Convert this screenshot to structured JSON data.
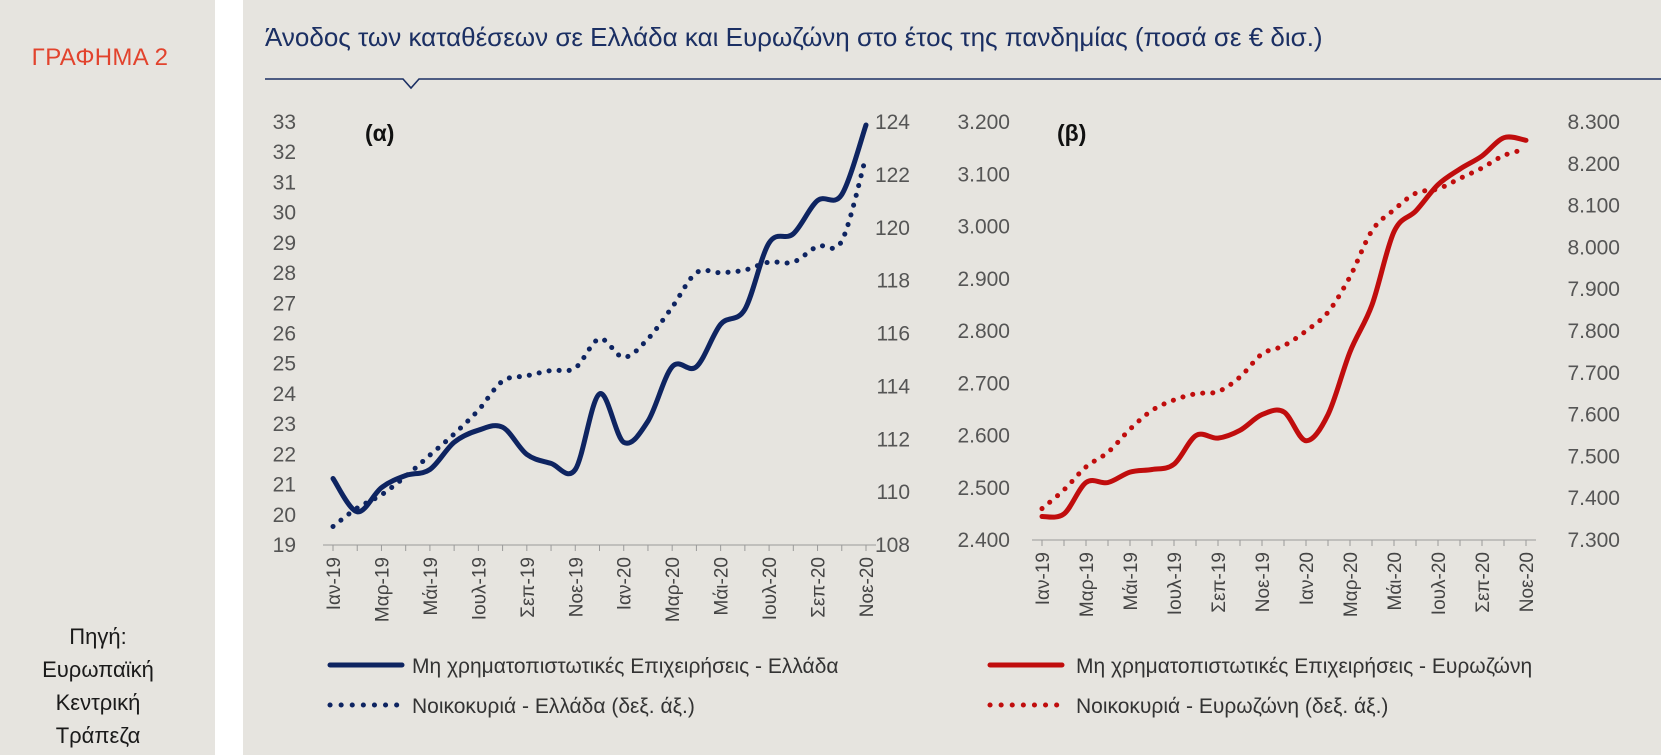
{
  "sidebar": {
    "label": "ΓΡΑΦΗΜΑ 2",
    "source": [
      "Πηγή:",
      "Ευρωπαϊκή",
      "Κεντρική",
      "Τράπεζα"
    ]
  },
  "title": "Άνοδος των καταθέσεων σε Ελλάδα και Ευρωζώνη στο έτος της πανδημίας (ποσά σε € δισ.)",
  "colors": {
    "navy": "#0e2461",
    "red": "#c00d0d",
    "title": "#1b2f63",
    "label": "#e2432d"
  },
  "chart_data": [
    {
      "type": "line",
      "panel_label": "(α)",
      "x": [
        "Ιαν-19",
        "Φεβ-19",
        "Μαρ-19",
        "Απρ-19",
        "Μάι-19",
        "Ιουν-19",
        "Ιουλ-19",
        "Αυγ-19",
        "Σεπ-19",
        "Οκτ-19",
        "Νοε-19",
        "Δεκ-19",
        "Ιαν-20",
        "Φεβ-20",
        "Μαρ-20",
        "Απρ-20",
        "Μάι-20",
        "Ιουν-20",
        "Ιουλ-20",
        "Αυγ-20",
        "Σεπ-20",
        "Οκτ-20",
        "Νοε-20"
      ],
      "xtick_labels": [
        "Ιαν-19",
        "Μαρ-19",
        "Μάι-19",
        "Ιουλ-19",
        "Σεπ-19",
        "Νοε-19",
        "Ιαν-20",
        "Μαρ-20",
        "Μάι-20",
        "Ιουλ-20",
        "Σεπ-20",
        "Νοε-20"
      ],
      "left_axis": {
        "ylim": [
          19,
          33
        ],
        "ticks": [
          "19",
          "20",
          "21",
          "22",
          "23",
          "24",
          "25",
          "26",
          "27",
          "28",
          "29",
          "30",
          "31",
          "32",
          "33"
        ]
      },
      "right_axis": {
        "ylim": [
          108,
          124
        ],
        "ticks": [
          "108",
          "110",
          "112",
          "114",
          "116",
          "118",
          "120",
          "122",
          "124"
        ]
      },
      "series": [
        {
          "name": "Μη χρηματοπιστωτικές Επιχειρήσεις - Ελλάδα",
          "axis": "left",
          "style": "solid",
          "values": [
            21.2,
            20.1,
            20.9,
            21.3,
            21.5,
            22.4,
            22.8,
            22.9,
            22.0,
            21.7,
            21.5,
            24.0,
            22.4,
            23.1,
            24.9,
            24.9,
            26.3,
            26.8,
            29.0,
            29.3,
            30.4,
            30.6,
            32.9
          ]
        },
        {
          "name": "Νοικοκυριά - Ελλάδα  (δεξ. άξ.)",
          "axis": "right",
          "style": "dotted",
          "values": [
            108.7,
            109.4,
            109.9,
            110.6,
            111.4,
            112.2,
            113.1,
            114.2,
            114.4,
            114.6,
            114.7,
            115.8,
            115.1,
            115.8,
            117.0,
            118.3,
            118.3,
            118.4,
            118.7,
            118.7,
            119.3,
            119.5,
            122.7
          ]
        }
      ]
    },
    {
      "type": "line",
      "panel_label": "(β)",
      "x": [
        "Ιαν-19",
        "Φεβ-19",
        "Μαρ-19",
        "Απρ-19",
        "Μάι-19",
        "Ιουν-19",
        "Ιουλ-19",
        "Αυγ-19",
        "Σεπ-19",
        "Οκτ-19",
        "Νοε-19",
        "Δεκ-19",
        "Ιαν-20",
        "Φεβ-20",
        "Μαρ-20",
        "Απρ-20",
        "Μάι-20",
        "Ιουν-20",
        "Ιουλ-20",
        "Αυγ-20",
        "Σεπ-20",
        "Οκτ-20",
        "Νοε-20"
      ],
      "xtick_labels": [
        "Ιαν-19",
        "Μαρ-19",
        "Μάι-19",
        "Ιουλ-19",
        "Σεπ-19",
        "Νοε-19",
        "Ιαν-20",
        "Μαρ-20",
        "Μάι-20",
        "Ιουλ-20",
        "Σεπ-20",
        "Νοε-20"
      ],
      "left_axis": {
        "ylim": [
          2400,
          3200
        ],
        "ticks": [
          "2.400",
          "2.500",
          "2.600",
          "2.700",
          "2.800",
          "2.900",
          "3.000",
          "3.100",
          "3.200"
        ]
      },
      "right_axis": {
        "ylim": [
          7300,
          8300
        ],
        "ticks": [
          "7.300",
          "7.400",
          "7.500",
          "7.600",
          "7.700",
          "7.800",
          "7.900",
          "8.000",
          "8.100",
          "8.200",
          "8.300"
        ]
      },
      "series": [
        {
          "name": "Μη χρηματοπιστωτικές Επιχειρήσεις - Ευρωζώνη",
          "axis": "left",
          "style": "solid",
          "values": [
            2445,
            2450,
            2510,
            2510,
            2530,
            2535,
            2545,
            2600,
            2595,
            2610,
            2640,
            2645,
            2590,
            2640,
            2760,
            2850,
            2990,
            3030,
            3080,
            3110,
            3135,
            3170,
            3165
          ]
        },
        {
          "name": "Νοικοκυριά - Ευρωζώνη  (δεξ. άξ.)",
          "axis": "right",
          "style": "dotted",
          "values": [
            7375,
            7420,
            7475,
            7510,
            7565,
            7610,
            7635,
            7650,
            7655,
            7690,
            7745,
            7765,
            7800,
            7845,
            7930,
            8040,
            8090,
            8130,
            8140,
            8165,
            8190,
            8220,
            8235
          ]
        }
      ]
    }
  ]
}
